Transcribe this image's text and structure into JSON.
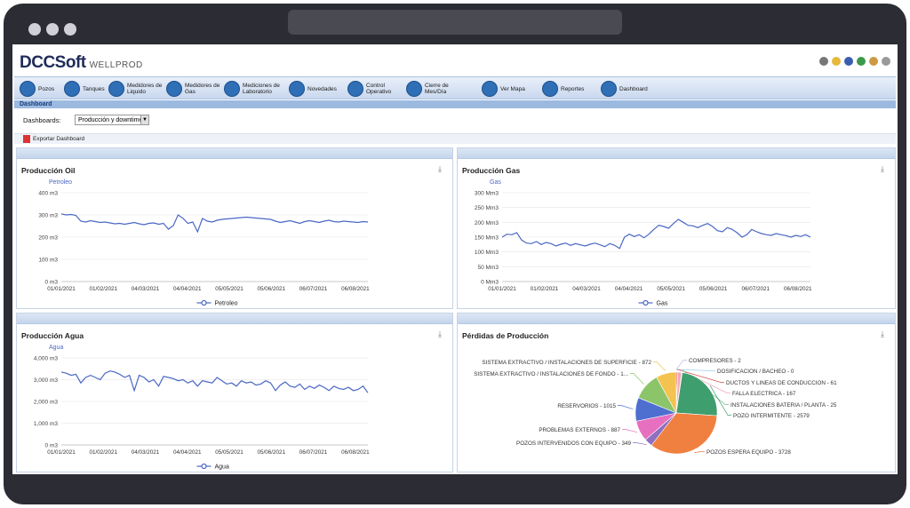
{
  "app": {
    "logo_main": "DCCSoft",
    "logo_sub": "WELLPROD"
  },
  "colors": {
    "accent": "#2f6fb6",
    "line": "#4a67c4",
    "header": "#9cb9e0"
  },
  "menu": [
    {
      "label": "Pozos",
      "icon": "well-icon"
    },
    {
      "label": "Tanques",
      "icon": "tank-icon"
    },
    {
      "label": "Medidores de Liquido",
      "icon": "liquid-meter-icon"
    },
    {
      "label": "Medidores de Gas",
      "icon": "gas-meter-icon"
    },
    {
      "label": "Mediciones de Laboratorio",
      "icon": "lab-icon"
    },
    {
      "label": "Novedades",
      "icon": "news-icon"
    },
    {
      "label": "Control Operativo",
      "icon": "clipboard-icon"
    },
    {
      "label": "Cierre de Mes/Día",
      "icon": "calendar-icon"
    },
    {
      "label": "Ver Mapa",
      "icon": "map-icon"
    },
    {
      "label": "Reportes",
      "icon": "report-icon"
    },
    {
      "label": "Dashboard",
      "icon": "dashboard-icon"
    }
  ],
  "section_title": "Dashboard",
  "dash_select": {
    "label": "Dashboards:",
    "value": "Producción y downtime"
  },
  "export_label": "Exportar Dashboard",
  "chart_data": [
    {
      "type": "line",
      "title": "Producción Oil",
      "ylabel": "Petroleo",
      "yticks": [
        "0 m3",
        "100 m3",
        "200 m3",
        "300 m3",
        "400 m3"
      ],
      "ylim": [
        0,
        400
      ],
      "xticks": [
        "01/01/2021",
        "01/02/2021",
        "04/03/2021",
        "04/04/2021",
        "05/05/2021",
        "05/06/2021",
        "06/07/2021",
        "06/08/2021"
      ],
      "legend": "Petroleo",
      "values": [
        305,
        300,
        302,
        298,
        272,
        268,
        274,
        270,
        266,
        268,
        264,
        260,
        262,
        258,
        262,
        266,
        260,
        256,
        262,
        264,
        258,
        262,
        236,
        252,
        300,
        285,
        262,
        268,
        224,
        284,
        272,
        268,
        276,
        280,
        282,
        284,
        286,
        288,
        290,
        288,
        286,
        284,
        282,
        280,
        272,
        266,
        270,
        274,
        268,
        262,
        270,
        274,
        270,
        266,
        272,
        276,
        270,
        268,
        272,
        270,
        268,
        266,
        270,
        268
      ]
    },
    {
      "type": "line",
      "title": "Producción Gas",
      "ylabel": "Gas",
      "yticks": [
        "0 Mm3",
        "50 Mm3",
        "100 Mm3",
        "150 Mm3",
        "200 Mm3",
        "250 Mm3",
        "300 Mm3"
      ],
      "ylim": [
        0,
        300
      ],
      "xticks": [
        "01/01/2021",
        "01/02/2021",
        "04/03/2021",
        "04/04/2021",
        "05/05/2021",
        "05/06/2021",
        "06/07/2021",
        "06/08/2021"
      ],
      "legend": "Gas",
      "values": [
        150,
        160,
        158,
        165,
        140,
        130,
        128,
        135,
        125,
        132,
        128,
        120,
        126,
        130,
        122,
        128,
        124,
        120,
        126,
        130,
        124,
        118,
        128,
        122,
        112,
        150,
        160,
        152,
        158,
        148,
        160,
        176,
        190,
        186,
        180,
        196,
        210,
        200,
        190,
        188,
        182,
        190,
        196,
        186,
        172,
        168,
        182,
        176,
        165,
        150,
        158,
        176,
        168,
        162,
        158,
        156,
        162,
        158,
        155,
        150,
        156,
        152,
        158,
        150
      ]
    },
    {
      "type": "line",
      "title": "Producción Agua",
      "ylabel": "Agua",
      "yticks": [
        "0 m3",
        "1,000 m3",
        "2,000 m3",
        "3,000 m3",
        "4,000 m3"
      ],
      "ylim": [
        0,
        4000
      ],
      "xticks": [
        "01/01/2021",
        "01/02/2021",
        "04/03/2021",
        "04/04/2021",
        "05/05/2021",
        "05/06/2021",
        "06/07/2021",
        "06/08/2021"
      ],
      "legend": "Agua",
      "values": [
        3350,
        3300,
        3200,
        3250,
        2850,
        3100,
        3200,
        3100,
        3000,
        3300,
        3400,
        3350,
        3250,
        3100,
        3200,
        2500,
        3200,
        3100,
        2900,
        3000,
        2700,
        3150,
        3100,
        3050,
        2950,
        3000,
        2850,
        2950,
        2700,
        2950,
        2900,
        2850,
        3100,
        2950,
        2800,
        2850,
        2700,
        2950,
        2850,
        2900,
        2750,
        2800,
        2950,
        2850,
        2500,
        2750,
        2900,
        2700,
        2650,
        2800,
        2550,
        2700,
        2600,
        2750,
        2650,
        2500,
        2700,
        2600,
        2550,
        2650,
        2500,
        2550,
        2700,
        2400
      ]
    },
    {
      "type": "pie",
      "title": "Pérdidas de Producción",
      "slices": [
        {
          "label": "COMPRESORES - 2",
          "value": 2,
          "color": "#c9b7e8"
        },
        {
          "label": "DOSIFICACION / BACHEO - 0",
          "value": 0,
          "color": "#9ad0ec"
        },
        {
          "label": "DUCTOS Y LINEAS DE CONDUCCION - 61",
          "value": 61,
          "color": "#d64e4e"
        },
        {
          "label": "FALLA ELECTRICA - 167",
          "value": 167,
          "color": "#f2a7b8"
        },
        {
          "label": "INSTALACIONES BATERIA / PLANTA - 25",
          "value": 25,
          "color": "#6bbf8a"
        },
        {
          "label": "POZO INTERMITENTE - 2579",
          "value": 2579,
          "color": "#3f9e6e"
        },
        {
          "label": "POZOS ESPERA EQUIPO - 3728",
          "value": 3728,
          "color": "#f08040"
        },
        {
          "label": "POZOS INTERVENIDOS CON  EQUIPO  - 349",
          "value": 349,
          "color": "#8e6fc0"
        },
        {
          "label": "PROBLEMAS EXTERNOS - 887",
          "value": 887,
          "color": "#e76fbf"
        },
        {
          "label": "RESERVORIOS - 1015",
          "value": 1015,
          "color": "#4e6fd0"
        },
        {
          "label": "SISTEMA EXTRACTIVO / INSTALACIONES DE FONDO - 1...",
          "value": 1180,
          "color": "#8cc46a"
        },
        {
          "label": "SISTEMA EXTRACTIVO / INSTALACIONES DE SUPERFICIE - 872",
          "value": 872,
          "color": "#f3c24f"
        }
      ]
    }
  ]
}
